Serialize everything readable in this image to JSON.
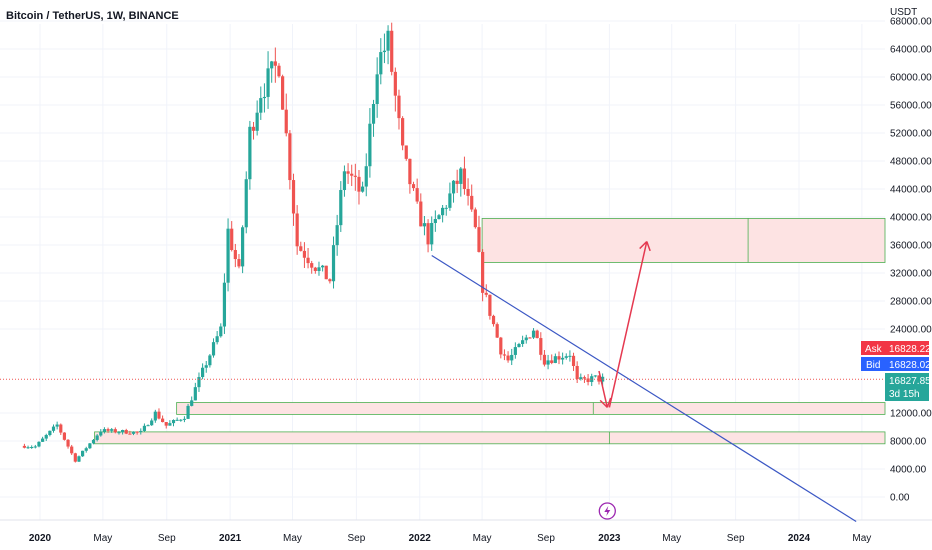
{
  "header": {
    "title": "Bitcoin / TetherUS, 1W, BINANCE"
  },
  "price_scale": {
    "unit": "USDT"
  },
  "quotes": {
    "ask_label": "Ask",
    "ask_value": "16828.22",
    "bid_label": "Bid",
    "bid_value": "16828.02",
    "last_value": "16827.85",
    "countdown": "3d 15h"
  },
  "colors": {
    "up": "#26a69a",
    "down": "#ef5350",
    "ask": "#f23645",
    "bid": "#2962ff",
    "last": "#26a69a",
    "zone_fill": "#fde3e3",
    "zone_border": "#4caf50",
    "trendline": "#3b57c4",
    "arrow": "#e53950",
    "event_icon": "#9c27b0"
  },
  "icons": {
    "event": "lightning-icon"
  },
  "chart_data": {
    "type": "candlestick",
    "title": "Bitcoin / TetherUS, 1W, BINANCE",
    "y_unit": "USDT",
    "y_ticks": [
      "68000.00",
      "64000.00",
      "60000.00",
      "56000.00",
      "52000.00",
      "48000.00",
      "44000.00",
      "40000.00",
      "36000.00",
      "32000.00",
      "28000.00",
      "24000.00",
      "12000.00",
      "8000.00",
      "4000.00",
      "0.00"
    ],
    "x_ticks": [
      {
        "label": "2020",
        "year": true
      },
      {
        "label": "May",
        "year": false
      },
      {
        "label": "Sep",
        "year": false
      },
      {
        "label": "2021",
        "year": true
      },
      {
        "label": "May",
        "year": false
      },
      {
        "label": "Sep",
        "year": false
      },
      {
        "label": "2022",
        "year": true
      },
      {
        "label": "May",
        "year": false
      },
      {
        "label": "Sep",
        "year": false
      },
      {
        "label": "2023",
        "year": true
      },
      {
        "label": "May",
        "year": false
      },
      {
        "label": "Sep",
        "year": false
      },
      {
        "label": "2024",
        "year": true
      },
      {
        "label": "May",
        "year": false
      }
    ],
    "x_tick_dates": [
      "2020-01-01",
      "2020-05-01",
      "2020-09-01",
      "2021-01-01",
      "2021-05-01",
      "2021-09-01",
      "2022-01-01",
      "2022-05-01",
      "2022-09-01",
      "2023-01-01",
      "2023-05-01",
      "2023-09-01",
      "2024-01-01",
      "2024-05-01"
    ],
    "last_price": 16827.85,
    "anchors": [
      [
        "2019-12-02",
        7300
      ],
      [
        "2019-12-30",
        7200
      ],
      [
        "2020-02-10",
        10300
      ],
      [
        "2020-03-16",
        5200
      ],
      [
        "2020-05-04",
        9500
      ],
      [
        "2020-07-20",
        9200
      ],
      [
        "2020-08-17",
        12000
      ],
      [
        "2020-09-07",
        10200
      ],
      [
        "2020-10-12",
        11500
      ],
      [
        "2020-11-02",
        15500
      ],
      [
        "2020-12-21",
        24000
      ],
      [
        "2021-01-04",
        38000
      ],
      [
        "2021-01-25",
        32000
      ],
      [
        "2021-02-15",
        52000
      ],
      [
        "2021-03-08",
        58000
      ],
      [
        "2021-04-12",
        62000
      ],
      [
        "2021-05-17",
        36000
      ],
      [
        "2021-06-21",
        33000
      ],
      [
        "2021-07-19",
        31000
      ],
      [
        "2021-08-16",
        47000
      ],
      [
        "2021-09-20",
        43000
      ],
      [
        "2021-10-18",
        62000
      ],
      [
        "2021-11-08",
        65000
      ],
      [
        "2021-12-06",
        49000
      ],
      [
        "2022-01-03",
        41000
      ],
      [
        "2022-01-24",
        37000
      ],
      [
        "2022-03-28",
        46000
      ],
      [
        "2022-04-25",
        38000
      ],
      [
        "2022-05-09",
        30000
      ],
      [
        "2022-06-13",
        21000
      ],
      [
        "2022-06-27",
        19500
      ],
      [
        "2022-08-15",
        24000
      ],
      [
        "2022-09-05",
        19500
      ],
      [
        "2022-10-24",
        20500
      ],
      [
        "2022-11-07",
        16500
      ],
      [
        "2022-12-12",
        17000
      ],
      [
        "2022-12-19",
        16828
      ]
    ],
    "zones": [
      {
        "from": "2022-05-01",
        "to": "2023-09-25",
        "low": 33500,
        "high": 39800,
        "split": "2023-09-25",
        "extend": true
      },
      {
        "from": "2020-09-20",
        "to": "2022-12-01",
        "low": 11800,
        "high": 13500,
        "split": "2022-12-01",
        "extend": true
      },
      {
        "from": "2020-04-15",
        "to": "2023-01-01",
        "low": 7600,
        "high": 9300,
        "split": "2023-01-01",
        "extend": true
      }
    ],
    "trendline": {
      "from": [
        "2022-01-24",
        34500
      ],
      "to": [
        "2024-04-20",
        -3500
      ]
    },
    "arrows": [
      {
        "points": [
          [
            "2022-12-12",
            18000
          ],
          [
            "2022-12-28",
            12800
          ]
        ]
      },
      {
        "points": [
          [
            "2023-01-01",
            12800
          ],
          [
            "2023-03-14",
            36500
          ]
        ]
      }
    ],
    "event_marker": {
      "date": "2022-12-28"
    }
  }
}
